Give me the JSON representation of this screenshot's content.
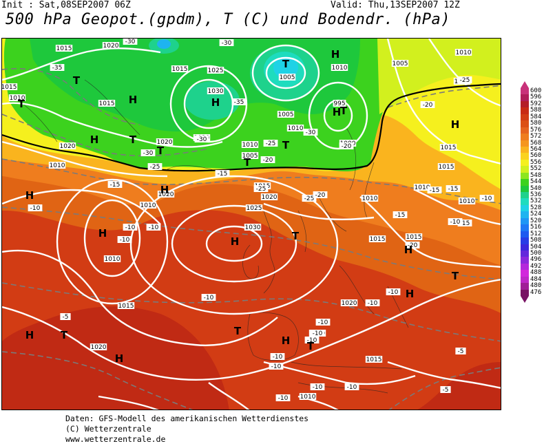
{
  "header": {
    "init": "Init : Sat,08SEP2007 06Z",
    "valid": "Valid: Thu,13SEP2007 12Z",
    "title": "500 hPa Geopot.(gpdm), T (C) und Bodendr. (hPa)"
  },
  "legend": {
    "levels": [
      {
        "label": "600",
        "color": "#c8327a"
      },
      {
        "label": "596",
        "color": "#b01e5a"
      },
      {
        "label": "592",
        "color": "#b41e28"
      },
      {
        "label": "588",
        "color": "#c82a14"
      },
      {
        "label": "584",
        "color": "#d23c14"
      },
      {
        "label": "580",
        "color": "#dc5014"
      },
      {
        "label": "576",
        "color": "#e6641e"
      },
      {
        "label": "572",
        "color": "#ef7d1e"
      },
      {
        "label": "568",
        "color": "#f5961e"
      },
      {
        "label": "564",
        "color": "#fab41e"
      },
      {
        "label": "560",
        "color": "#fad21e"
      },
      {
        "label": "556",
        "color": "#f5f01e"
      },
      {
        "label": "552",
        "color": "#d2f01e"
      },
      {
        "label": "548",
        "color": "#8ce61e"
      },
      {
        "label": "544",
        "color": "#3cd21e"
      },
      {
        "label": "540",
        "color": "#1ec83c"
      },
      {
        "label": "536",
        "color": "#1ed28c"
      },
      {
        "label": "532",
        "color": "#1edcbe"
      },
      {
        "label": "528",
        "color": "#1ed2e6"
      },
      {
        "label": "524",
        "color": "#1eb4f0"
      },
      {
        "label": "520",
        "color": "#1e96f5"
      },
      {
        "label": "516",
        "color": "#1e78f5"
      },
      {
        "label": "512",
        "color": "#1e5af0"
      },
      {
        "label": "508",
        "color": "#283ce6"
      },
      {
        "label": "504",
        "color": "#3c28dc"
      },
      {
        "label": "500",
        "color": "#6428dc"
      },
      {
        "label": "496",
        "color": "#8c28dc"
      },
      {
        "label": "492",
        "color": "#b428dc"
      },
      {
        "label": "488",
        "color": "#d228dc"
      },
      {
        "label": "484",
        "color": "#be28c8"
      },
      {
        "label": "480",
        "color": "#a01e96"
      },
      {
        "label": "476",
        "color": "#781464"
      }
    ]
  },
  "map": {
    "pressure_labels": [
      "1015",
      "1020",
      "1015",
      "1025",
      "1030",
      "1005",
      "1005",
      "1010",
      "995",
      "1000",
      "1010",
      "1005",
      "1010",
      "1015",
      "1015",
      "1020",
      "1010",
      "1005",
      "1010",
      "1015",
      "1020",
      "1020",
      "1015",
      "1010",
      "1010",
      "1015",
      "1030",
      "1025",
      "1010",
      "1020",
      "1015",
      "1010",
      "1015",
      "1010",
      "1010",
      "1015",
      "1015",
      "1020",
      "1020",
      "1020",
      "1010",
      "1010",
      "1015"
    ],
    "temp_labels": [
      "-30",
      "-35",
      "-30",
      "-25",
      "-35",
      "-30",
      "-30",
      "-30",
      "-25",
      "-25",
      "-20",
      "-20",
      "-25",
      "-20",
      "-15",
      "-15",
      "-20",
      "-15",
      "-15",
      "-15",
      "-20",
      "-25",
      "-15",
      "-10",
      "-10",
      "-10",
      "-10",
      "-10",
      "-10",
      "-10",
      "-10",
      "-10",
      "-5",
      "-10",
      "-10",
      "-10",
      "-10",
      "-5",
      "-5",
      "-10",
      "-10",
      "-10",
      "-10"
    ],
    "systems": [
      "T",
      "T",
      "H",
      "H",
      "T",
      "H",
      "T",
      "H",
      "H",
      "T",
      "T",
      "T",
      "H",
      "T",
      "H",
      "H",
      "H",
      "T",
      "H",
      "H",
      "H",
      "T",
      "T",
      "H",
      "T",
      "H",
      "T",
      "H"
    ]
  },
  "footer": {
    "line1": "Daten: GFS-Modell des amerikanischen Wetterdienstes",
    "line2": "(C) Wetterzentrale",
    "line3": "www.wetterzentrale.de"
  }
}
